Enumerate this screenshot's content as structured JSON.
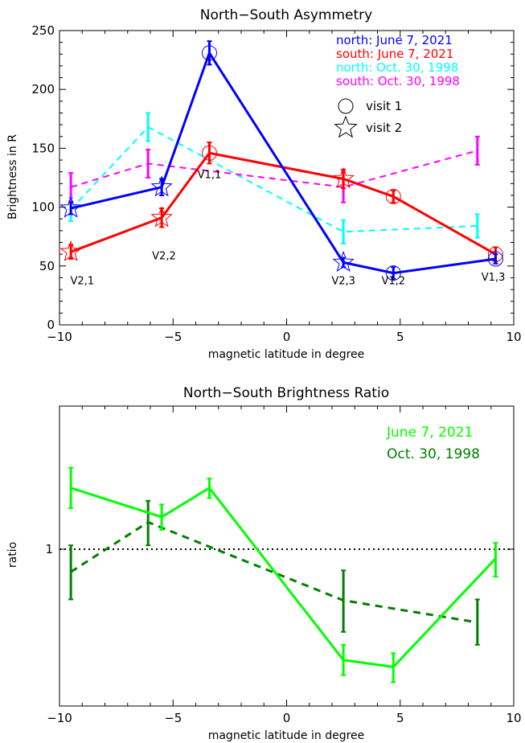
{
  "chart_data": [
    {
      "type": "line",
      "title": "North−South Asymmetry",
      "xlabel": "magnetic latitude in degree",
      "ylabel": "Brightness in R",
      "xlim": [
        -10,
        10
      ],
      "ylim": [
        0,
        250
      ],
      "xticks": [
        "−10",
        "−5",
        "0",
        "5",
        "10"
      ],
      "yticks": [
        "0",
        "50",
        "100",
        "150",
        "200",
        "250"
      ],
      "legend_position": "top-right",
      "legend": [
        {
          "label": "north: June 7, 2021",
          "color": "#0000ff"
        },
        {
          "label": "south: June 7, 2021",
          "color": "#ff0000"
        },
        {
          "label": "north: Oct. 30, 1998",
          "color": "#00ffff"
        },
        {
          "label": "south: Oct. 30, 1998",
          "color": "#ff00ff"
        }
      ],
      "marker_legend": [
        {
          "label": "visit 1",
          "marker": "circle"
        },
        {
          "label": "visit 2",
          "marker": "star"
        }
      ],
      "series": [
        {
          "name": "north: June 7, 2021",
          "color": "#0000ff",
          "dash": false,
          "points": [
            {
              "x": -9.5,
              "y": 99,
              "err": 5,
              "marker": "star"
            },
            {
              "x": -5.5,
              "y": 117,
              "err": 7,
              "marker": "star"
            },
            {
              "x": -3.4,
              "y": 231,
              "err": 10,
              "marker": "circle"
            },
            {
              "x": 2.5,
              "y": 53,
              "err": 4,
              "marker": "star"
            },
            {
              "x": 4.7,
              "y": 44,
              "err": 5,
              "marker": "circle"
            },
            {
              "x": 9.2,
              "y": 56,
              "err": 4,
              "marker": "circle"
            }
          ]
        },
        {
          "name": "south: June 7, 2021",
          "color": "#ff0000",
          "dash": false,
          "points": [
            {
              "x": -9.5,
              "y": 62,
              "err": 6,
              "marker": "star"
            },
            {
              "x": -5.5,
              "y": 91,
              "err": 8,
              "marker": "star"
            },
            {
              "x": -3.4,
              "y": 146,
              "err": 9,
              "marker": "circle"
            },
            {
              "x": 2.5,
              "y": 124,
              "err": 8,
              "marker": "star"
            },
            {
              "x": 4.7,
              "y": 109,
              "err": 5,
              "marker": "circle"
            },
            {
              "x": 9.2,
              "y": 60,
              "err": 6,
              "marker": "circle"
            }
          ]
        },
        {
          "name": "north: Oct. 30, 1998",
          "color": "#00ffff",
          "dash": true,
          "points": [
            {
              "x": -9.5,
              "y": 98,
              "err": 10
            },
            {
              "x": -6.1,
              "y": 168,
              "err": 12
            },
            {
              "x": 2.5,
              "y": 79,
              "err": 10
            },
            {
              "x": 8.4,
              "y": 84,
              "err": 10
            }
          ]
        },
        {
          "name": "south: Oct. 30, 1998",
          "color": "#ff00ff",
          "dash": true,
          "points": [
            {
              "x": -9.5,
              "y": 117,
              "err": 12
            },
            {
              "x": -6.1,
              "y": 137,
              "err": 12
            },
            {
              "x": 2.5,
              "y": 117,
              "err": 13
            },
            {
              "x": 8.4,
              "y": 148,
              "err": 12
            }
          ]
        }
      ],
      "annotations": [
        {
          "text": "V2,1",
          "x": -9.0,
          "y": 38
        },
        {
          "text": "V2,2",
          "x": -5.4,
          "y": 59
        },
        {
          "text": "V1,1",
          "x": -3.4,
          "y": 128
        },
        {
          "text": "V2,3",
          "x": 2.5,
          "y": 38
        },
        {
          "text": "V1,2",
          "x": 4.7,
          "y": 38
        },
        {
          "text": "V1,3",
          "x": 9.1,
          "y": 41
        }
      ]
    },
    {
      "type": "line",
      "title": "North−South Brightness Ratio",
      "xlabel": "magnetic latitude in degree",
      "ylabel": "ratio",
      "xlim": [
        -10,
        10
      ],
      "ylim": [
        0.3,
        3.0
      ],
      "yscale": "log",
      "xticks": [
        "−10",
        "−5",
        "0",
        "5",
        "10"
      ],
      "yticks": [
        {
          "label": "1",
          "value": 1
        }
      ],
      "reference_line": {
        "y": 1,
        "style": "dotted"
      },
      "legend_position": "top-right",
      "legend": [
        {
          "label": "June 7, 2021",
          "color": "#00ff00"
        },
        {
          "label": "Oct. 30, 1998",
          "color": "#008000"
        }
      ],
      "series": [
        {
          "name": "June 7, 2021",
          "color": "#00ff00",
          "dash": false,
          "points": [
            {
              "x": -9.5,
              "y": 1.6,
              "lo": 1.37,
              "hi": 1.87
            },
            {
              "x": -5.5,
              "y": 1.28,
              "lo": 1.16,
              "hi": 1.41
            },
            {
              "x": -3.4,
              "y": 1.6,
              "lo": 1.48,
              "hi": 1.72
            },
            {
              "x": 2.5,
              "y": 0.427,
              "lo": 0.38,
              "hi": 0.48
            },
            {
              "x": 4.7,
              "y": 0.405,
              "lo": 0.36,
              "hi": 0.45
            },
            {
              "x": 9.2,
              "y": 0.93,
              "lo": 0.81,
              "hi": 1.05
            }
          ]
        },
        {
          "name": "Oct. 30, 1998",
          "color": "#008000",
          "dash": true,
          "points": [
            {
              "x": -9.5,
              "y": 0.84,
              "lo": 0.68,
              "hi": 1.03
            },
            {
              "x": -6.1,
              "y": 1.23,
              "lo": 1.03,
              "hi": 1.45
            },
            {
              "x": 2.5,
              "y": 0.675,
              "lo": 0.53,
              "hi": 0.85
            },
            {
              "x": 8.4,
              "y": 0.57,
              "lo": 0.48,
              "hi": 0.68
            }
          ]
        }
      ]
    }
  ]
}
